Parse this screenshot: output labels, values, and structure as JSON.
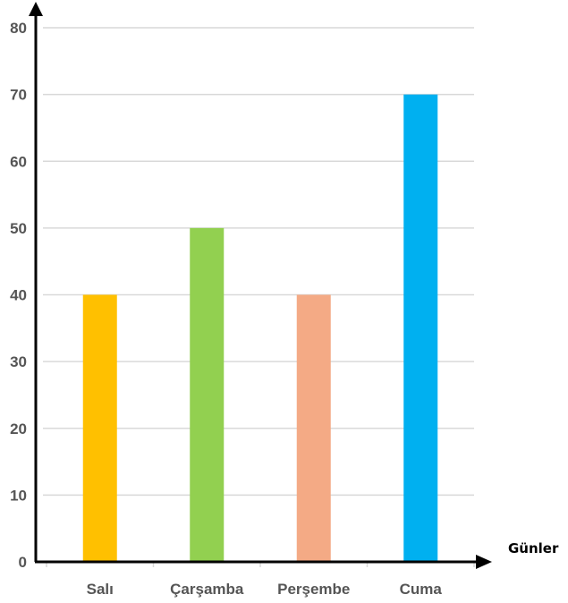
{
  "chart_data": {
    "type": "bar",
    "categories": [
      "Salı",
      "Çarşamba",
      "Perşembe",
      "Cuma"
    ],
    "values": [
      40,
      50,
      40,
      70
    ],
    "colors": [
      "#FFC000",
      "#92D050",
      "#F4AA85",
      "#00B0F0"
    ],
    "xlabel": "Günler",
    "ylabel": "",
    "ylim": [
      0,
      80
    ],
    "yticks": [
      "0",
      "10",
      "20",
      "30",
      "40",
      "50",
      "60",
      "70",
      "80"
    ],
    "grid": true,
    "gridColor": "#d9d9d9",
    "axisColor": "#000000"
  }
}
